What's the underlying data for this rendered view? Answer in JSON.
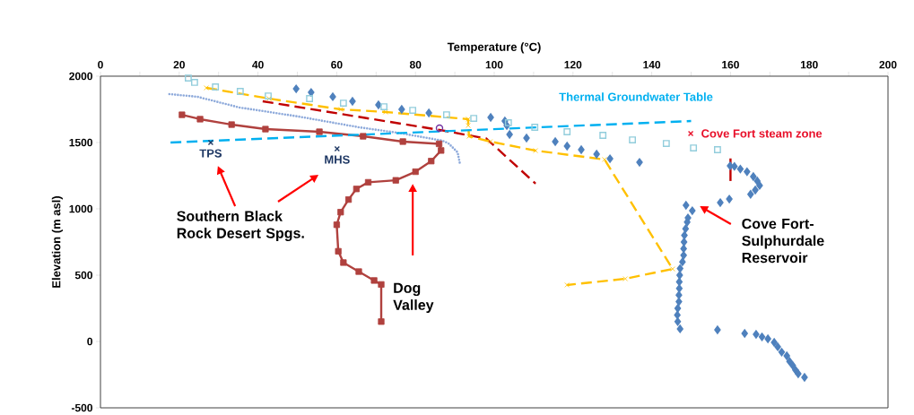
{
  "chart_data": {
    "type": "line",
    "xlabel": "Temperature (°C)",
    "ylabel": "Elevation (m asl)",
    "xlim": [
      0,
      200
    ],
    "ylim": [
      -500,
      2000
    ],
    "xticks": [
      0,
      {
        "value": 10,
        "label": null
      },
      20,
      {
        "value": 30,
        "label": null
      },
      40,
      {
        "value": 50,
        "label": null
      },
      60,
      {
        "value": 70,
        "label": null
      },
      80,
      {
        "value": 90,
        "label": null
      },
      100,
      {
        "value": 110,
        "label": null
      },
      120,
      {
        "value": 130,
        "label": null
      },
      140,
      {
        "value": 150,
        "label": null
      },
      160,
      {
        "value": 170,
        "label": null
      },
      180,
      {
        "value": 190,
        "label": null
      },
      200
    ],
    "yticks": [
      -500,
      0,
      500,
      1000,
      1500,
      2000
    ],
    "annotations": [
      "Southern Black Rock Desert Spgs.",
      "Dog Valley",
      "Cove Fort-Sulphurdale Reservoir"
    ],
    "series": [
      {
        "color": "#b0413e",
        "marker": "square",
        "line_style": "solid",
        "x": [
          20.7,
          25.3,
          33.3,
          41.9,
          55.6,
          66.7,
          76.8,
          86,
          86.5,
          84,
          80,
          75,
          68,
          65,
          63,
          61,
          60,
          60.4,
          61.7,
          65.6,
          69.5,
          71.3,
          71.3
        ],
        "values": [
          1709,
          1676,
          1635,
          1601,
          1581,
          1547,
          1507,
          1490,
          1440,
          1360,
          1280,
          1215,
          1200,
          1150,
          1070,
          975,
          880,
          680,
          595,
          527,
          460,
          430,
          150
        ]
      },
      {
        "color": "#8eaadb",
        "line_style": "dotted",
        "x": [
          17.5,
          24.6,
          35.3,
          50.3,
          65.6,
          76.3,
          86.8,
          88.4,
          90.7,
          91.3
        ],
        "values": [
          1865,
          1845,
          1764,
          1696,
          1615,
          1570,
          1514,
          1493,
          1426,
          1338
        ]
      },
      {
        "color": "#c00000",
        "line_style": "dashed",
        "x": [
          41.2,
          76.3,
          86.1,
          98,
          110.5
        ],
        "values": [
          1811,
          1642,
          1595,
          1530,
          1190
        ]
      },
      {
        "color": "#ffc000",
        "marker": "cross",
        "line_style": "dashed",
        "x": [
          26.9,
          42.8,
          61,
          72.4,
          93.4,
          93.4,
          93.6,
          99,
          110.5,
          128,
          145.3,
          133.3,
          118.5
        ],
        "values": [
          1912,
          1831,
          1750,
          1730,
          1676,
          1628,
          1547,
          1507,
          1439,
          1372,
          547,
          473,
          426
        ]
      },
      {
        "type": "scatter",
        "color": "#92cddc",
        "marker": "square",
        "x": [
          22.3,
          23.9,
          29.2,
          35.5,
          42.6,
          53.1,
          61.7,
          72,
          79.3,
          87.9,
          94.8,
          103.6,
          110.3,
          118.5,
          127.6,
          135.1,
          143.7,
          150.6,
          156.7
        ],
        "values": [
          1986,
          1953,
          1919,
          1885,
          1851,
          1831,
          1797,
          1770,
          1743,
          1709,
          1682,
          1649,
          1615,
          1581,
          1554,
          1520,
          1493,
          1459,
          1446
        ]
      },
      {
        "type": "scatter",
        "color": "#4f81bd",
        "marker": "diamond",
        "x": [
          49.7,
          53.5,
          59,
          64,
          70.6,
          76.5,
          83.4,
          99.1,
          102.7,
          103.2,
          103.9,
          108.2,
          115.5,
          118.5,
          122.1,
          126,
          129.4,
          136.9,
          159.9,
          161,
          162.5,
          164.2,
          165.8,
          166.8,
          167.4,
          166.3,
          165.1,
          159.7,
          157.4,
          148.7,
          150.3,
          149.2,
          149,
          148.6,
          148.3,
          148.2,
          148.1,
          148.1,
          147.8,
          147.2,
          147.1,
          147,
          147,
          146.9,
          146.9,
          146.6,
          146.5,
          146.6,
          147.2,
          156.7,
          163.6,
          166.5,
          168,
          169.5,
          171.1,
          172,
          173,
          174.3,
          175,
          175.8,
          176.5,
          177.2,
          178.8
        ],
        "values": [
          1905,
          1878,
          1845,
          1811,
          1784,
          1750,
          1723,
          1689,
          1662,
          1628,
          1561,
          1534,
          1507,
          1473,
          1446,
          1412,
          1378,
          1351,
          1324,
          1320,
          1300,
          1280,
          1243,
          1210,
          1176,
          1142,
          1110,
          1074,
          1047,
          1027,
          986,
          932,
          900,
          850,
          800,
          750,
          700,
          650,
          600,
          550,
          500,
          450,
          400,
          350,
          300,
          250,
          200,
          150,
          95,
          88,
          61,
          54,
          35,
          20,
          -7,
          -40,
          -80,
          -108,
          -150,
          -180,
          -215,
          -243,
          -270
        ]
      },
      {
        "color": "#c00000",
        "line_style": "solid",
        "x": [
          160,
          160
        ],
        "values": [
          1380,
          1210
        ]
      },
      {
        "name": "Thermal Groundwater Table",
        "color": "#00b0f0",
        "line_style": "dashed",
        "x": [
          17.8,
          150
        ],
        "values": [
          1500,
          1662
        ]
      },
      {
        "type": "scatter",
        "name": "TPS",
        "color": "#1f3864",
        "marker": "cross",
        "x": [
          28
        ],
        "values": [
          1500
        ]
      },
      {
        "type": "scatter",
        "name": "MHS",
        "color": "#1f3864",
        "marker": "cross",
        "x": [
          60.1
        ],
        "values": [
          1453
        ]
      },
      {
        "type": "scatter",
        "name": "Cove Fort steam zone",
        "color": "#e8102a",
        "marker": "cross",
        "x": [
          149.9
        ],
        "values": [
          1568
        ]
      },
      {
        "type": "scatter",
        "color": "#7030a0",
        "marker": "circle",
        "x": [
          86.1
        ],
        "values": [
          1608
        ]
      }
    ]
  }
}
